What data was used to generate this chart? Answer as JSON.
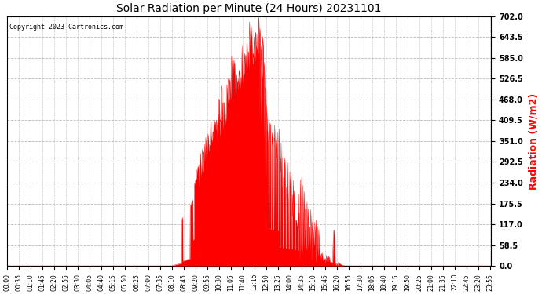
{
  "title": "Solar Radiation per Minute (24 Hours) 20231101",
  "ylabel": "Radiation (W/m2)",
  "copyright": "Copyright 2023 Cartronics.com",
  "ylim": [
    0.0,
    702.0
  ],
  "yticks": [
    0.0,
    58.5,
    117.0,
    175.5,
    234.0,
    292.5,
    351.0,
    409.5,
    468.0,
    526.5,
    585.0,
    643.5,
    702.0
  ],
  "fill_color": "#ff0000",
  "line_color": "#ff0000",
  "background_color": "#ffffff",
  "grid_color": "#bbbbbb",
  "title_color": "#000000",
  "ylabel_color": "#ff0000",
  "copyright_color": "#000000",
  "dashed_zero_color": "#ff0000",
  "total_minutes": 1440,
  "tick_interval_minutes": 35
}
